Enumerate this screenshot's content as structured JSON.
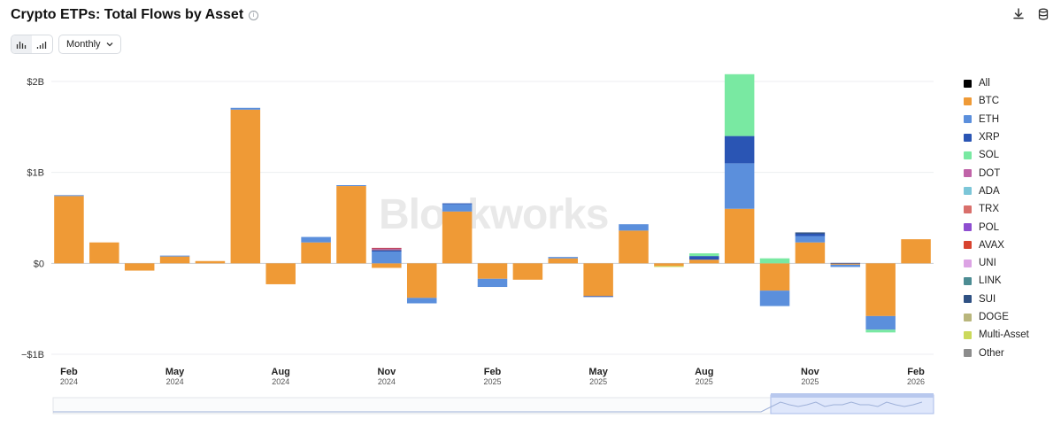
{
  "title": "Crypto ETPs: Total Flows by Asset",
  "info_icon": "info-icon",
  "toolbar": {
    "download_icon": "download-icon",
    "database_icon": "database-icon",
    "view_toggle_icons": [
      "bar-chart-icon",
      "bar-chart-ascending-icon"
    ],
    "interval": "Monthly"
  },
  "watermark": "Blockworks",
  "chart_data": {
    "type": "bar",
    "stacked": true,
    "y_tick_labels": [
      "$2B",
      "$1B",
      "$0",
      "−$1B"
    ],
    "y_ticks": [
      2000,
      1000,
      0,
      -1000
    ],
    "ylim": [
      -1000,
      2000
    ],
    "grid": true,
    "legend_position": "right",
    "x_tick_labels": [
      {
        "month": "Feb",
        "year": "2024"
      },
      {
        "month": "May",
        "year": "2024"
      },
      {
        "month": "Aug",
        "year": "2024"
      },
      {
        "month": "Nov",
        "year": "2024"
      },
      {
        "month": "Feb",
        "year": "2025"
      },
      {
        "month": "May",
        "year": "2025"
      },
      {
        "month": "Aug",
        "year": "2025"
      },
      {
        "month": "Nov",
        "year": "2025"
      },
      {
        "month": "Feb",
        "year": "2026"
      }
    ],
    "categories": [
      "2024-02",
      "2024-03",
      "2024-04",
      "2024-05",
      "2024-06",
      "2024-07",
      "2024-08",
      "2024-09",
      "2024-10",
      "2024-11",
      "2024-12",
      "2025-01",
      "2025-02",
      "2025-03",
      "2025-04",
      "2025-05",
      "2025-06",
      "2025-07",
      "2025-08",
      "2025-09",
      "2025-10",
      "2025-11",
      "2025-12",
      "2026-01",
      "2026-02"
    ],
    "series": [
      {
        "name": "All",
        "color": "#000000",
        "values": [
          0,
          0,
          0,
          0,
          0,
          0,
          0,
          0,
          0,
          0,
          0,
          0,
          0,
          0,
          0,
          0,
          0,
          0,
          0,
          0,
          0,
          0,
          0,
          0,
          0
        ]
      },
      {
        "name": "BTC",
        "color": "#ef9a36",
        "values": [
          740,
          230,
          -80,
          75,
          25,
          1690,
          -230,
          230,
          850,
          -50,
          -380,
          570,
          -170,
          -180,
          55,
          -360,
          360,
          -30,
          40,
          600,
          -300,
          230,
          -15,
          -580,
          265
        ]
      },
      {
        "name": "ETH",
        "color": "#5b8fdc",
        "values": [
          10,
          0,
          0,
          10,
          0,
          20,
          0,
          60,
          10,
          130,
          -60,
          80,
          -90,
          0,
          15,
          0,
          70,
          0,
          0,
          500,
          -170,
          70,
          -25,
          -150,
          0
        ]
      },
      {
        "name": "XRP",
        "color": "#2a55b4",
        "values": [
          0,
          0,
          0,
          0,
          0,
          0,
          0,
          0,
          0,
          15,
          0,
          10,
          0,
          0,
          0,
          -10,
          0,
          0,
          40,
          300,
          0,
          25,
          5,
          0,
          0
        ]
      },
      {
        "name": "SOL",
        "color": "#79e9a2",
        "values": [
          0,
          0,
          0,
          0,
          0,
          0,
          0,
          0,
          0,
          0,
          0,
          0,
          0,
          0,
          0,
          0,
          0,
          0,
          30,
          680,
          55,
          0,
          0,
          -30,
          0
        ]
      },
      {
        "name": "DOT",
        "color": "#c063a8",
        "values": [
          0,
          0,
          0,
          0,
          0,
          0,
          0,
          0,
          0,
          0,
          0,
          0,
          0,
          0,
          0,
          0,
          0,
          0,
          0,
          0,
          0,
          0,
          0,
          0,
          0
        ]
      },
      {
        "name": "ADA",
        "color": "#7cc6d8",
        "values": [
          0,
          0,
          0,
          0,
          0,
          0,
          0,
          0,
          0,
          0,
          0,
          0,
          0,
          0,
          0,
          0,
          0,
          0,
          0,
          0,
          0,
          0,
          0,
          0,
          0
        ]
      },
      {
        "name": "TRX",
        "color": "#d96f6b",
        "values": [
          0,
          0,
          0,
          0,
          0,
          0,
          0,
          0,
          0,
          10,
          0,
          0,
          0,
          0,
          0,
          0,
          0,
          0,
          0,
          0,
          0,
          0,
          0,
          0,
          0
        ]
      },
      {
        "name": "POL",
        "color": "#8e4ed0",
        "values": [
          0,
          0,
          0,
          0,
          0,
          0,
          0,
          0,
          0,
          10,
          0,
          0,
          0,
          0,
          0,
          0,
          0,
          0,
          0,
          0,
          0,
          0,
          0,
          0,
          0
        ]
      },
      {
        "name": "AVAX",
        "color": "#d8432f",
        "values": [
          0,
          0,
          0,
          0,
          0,
          0,
          0,
          0,
          0,
          5,
          0,
          0,
          0,
          0,
          0,
          0,
          0,
          0,
          0,
          0,
          0,
          0,
          0,
          0,
          0
        ]
      },
      {
        "name": "UNI",
        "color": "#dca3e4",
        "values": [
          0,
          0,
          0,
          0,
          0,
          0,
          0,
          0,
          0,
          0,
          0,
          0,
          0,
          0,
          0,
          0,
          0,
          0,
          0,
          0,
          0,
          0,
          0,
          0,
          0
        ]
      },
      {
        "name": "LINK",
        "color": "#4c8c93",
        "values": [
          0,
          0,
          0,
          0,
          0,
          0,
          0,
          0,
          0,
          0,
          0,
          0,
          0,
          0,
          0,
          0,
          0,
          0,
          0,
          0,
          0,
          0,
          0,
          0,
          0
        ]
      },
      {
        "name": "SUI",
        "color": "#2f5183",
        "values": [
          0,
          0,
          0,
          0,
          0,
          0,
          0,
          0,
          0,
          0,
          0,
          0,
          0,
          0,
          0,
          0,
          0,
          0,
          0,
          0,
          0,
          15,
          0,
          0,
          0
        ]
      },
      {
        "name": "DOGE",
        "color": "#b9b67c",
        "values": [
          0,
          0,
          0,
          0,
          0,
          0,
          0,
          0,
          0,
          0,
          0,
          0,
          0,
          0,
          0,
          0,
          0,
          0,
          0,
          0,
          0,
          0,
          0,
          0,
          0
        ]
      },
      {
        "name": "Multi-Asset",
        "color": "#cbd95b",
        "values": [
          0,
          0,
          0,
          0,
          0,
          0,
          0,
          0,
          0,
          0,
          0,
          0,
          0,
          0,
          0,
          0,
          0,
          -10,
          0,
          0,
          0,
          0,
          0,
          0,
          0
        ]
      },
      {
        "name": "Other",
        "color": "#8c8c8c",
        "values": [
          0,
          0,
          0,
          0,
          0,
          0,
          0,
          0,
          0,
          0,
          0,
          0,
          0,
          0,
          0,
          0,
          0,
          0,
          0,
          0,
          0,
          0,
          0,
          0,
          0
        ]
      }
    ]
  }
}
